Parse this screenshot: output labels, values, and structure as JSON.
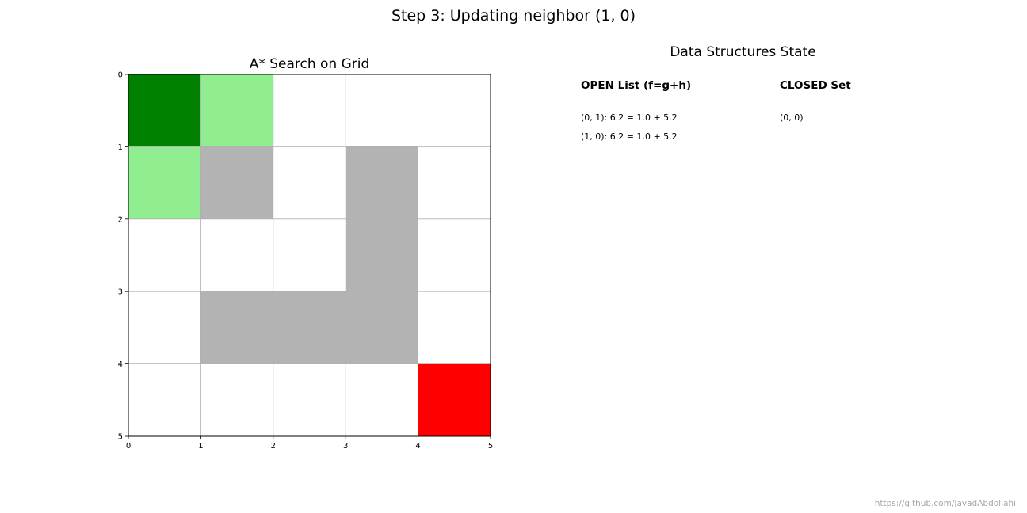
{
  "title": "Step 3: Updating neighbor (1, 0)",
  "grid": {
    "title": "A* Search on Grid",
    "rows": 5,
    "cols": 5,
    "cells": [
      [
        "#008000",
        "#90ee90",
        "#ffffff",
        "#ffffff",
        "#ffffff"
      ],
      [
        "#90ee90",
        "#b3b3b3",
        "#ffffff",
        "#b3b3b3",
        "#ffffff"
      ],
      [
        "#ffffff",
        "#ffffff",
        "#ffffff",
        "#b3b3b3",
        "#ffffff"
      ],
      [
        "#ffffff",
        "#b3b3b3",
        "#b3b3b3",
        "#b3b3b3",
        "#ffffff"
      ],
      [
        "#ffffff",
        "#ffffff",
        "#ffffff",
        "#ffffff",
        "#ff0000"
      ]
    ],
    "x_ticks": [
      "0",
      "1",
      "2",
      "3",
      "4",
      "5"
    ],
    "y_ticks": [
      "0",
      "1",
      "2",
      "3",
      "4",
      "5"
    ]
  },
  "panel": {
    "title": "Data Structures State",
    "open_header": "OPEN List (f=g+h)",
    "closed_header": "CLOSED Set",
    "open_items": [
      "(0, 1): 6.2 = 1.0 + 5.2",
      "(1, 0): 6.2 = 1.0 + 5.2"
    ],
    "closed_items": [
      "(0, 0)"
    ]
  },
  "watermark": "https://github.com/JavadAbdollahi"
}
